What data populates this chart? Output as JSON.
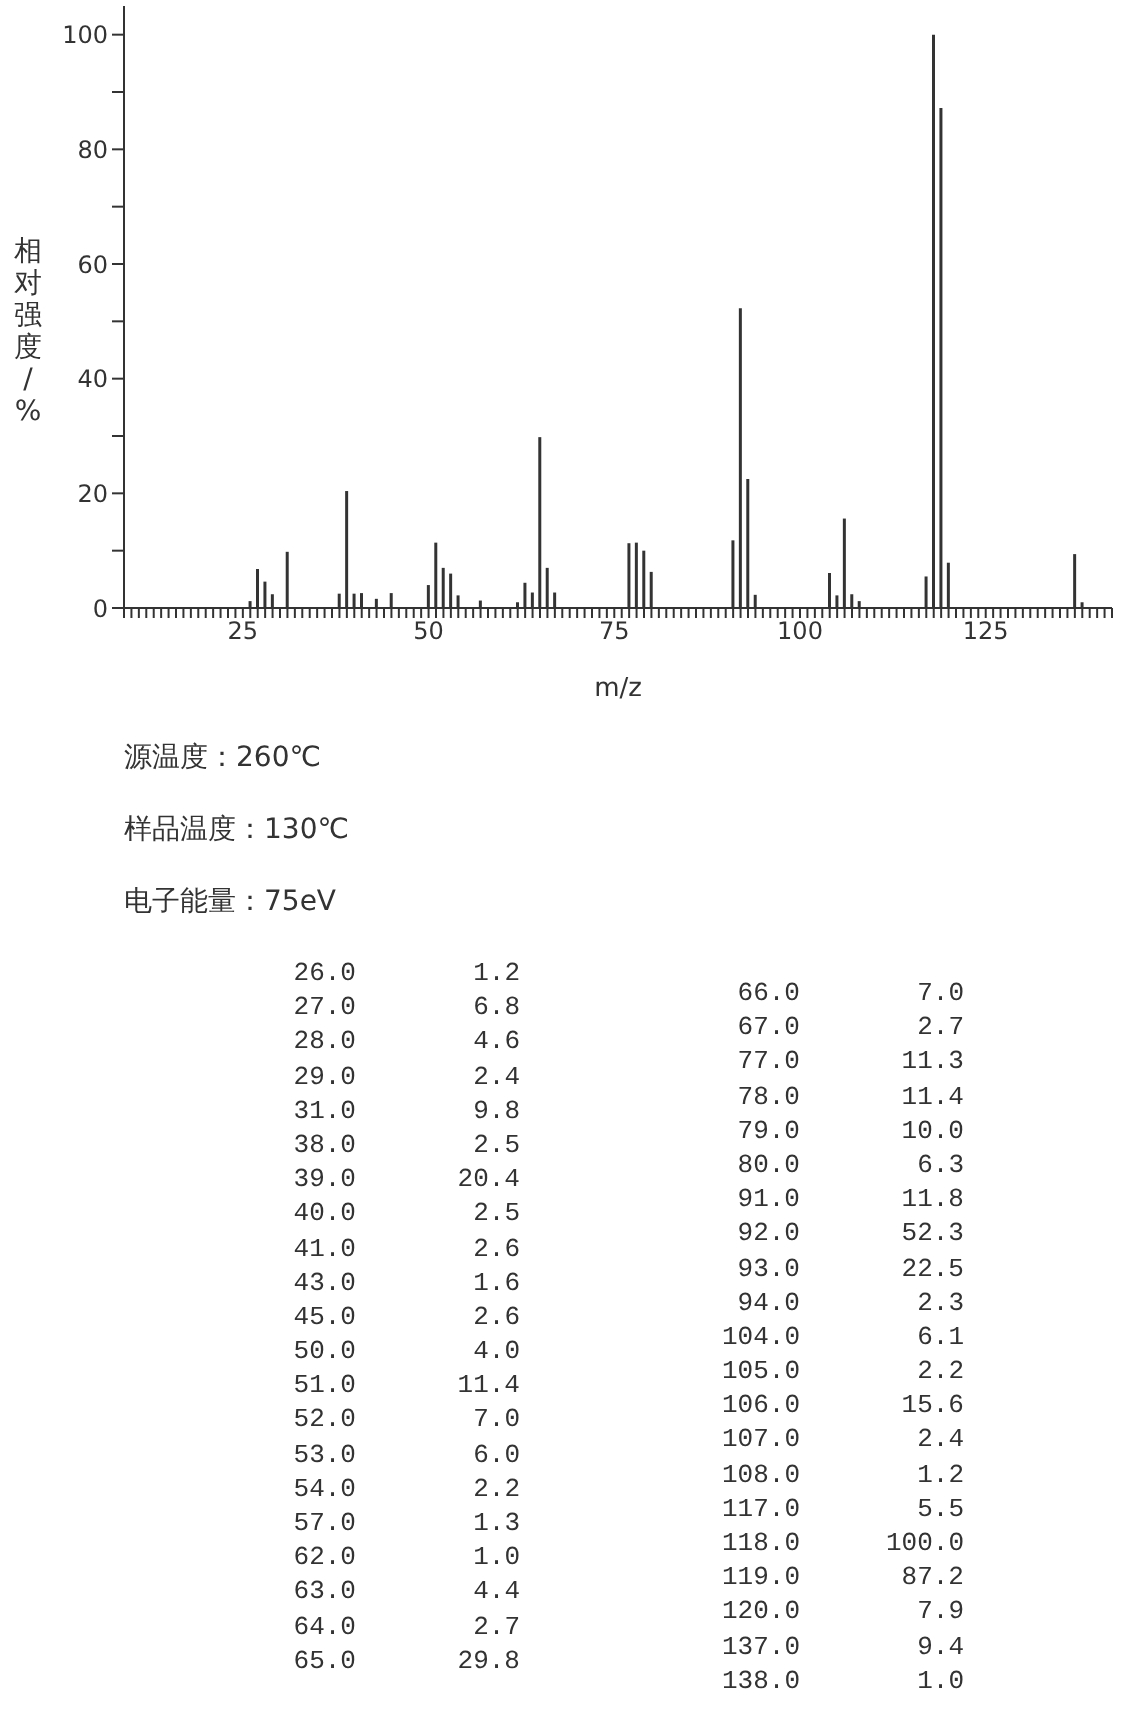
{
  "chart_data": {
    "type": "bar",
    "ylabel": "相对强度/%",
    "xlabel": "m/z",
    "color": "#333333",
    "x": [
      26,
      27,
      28,
      29,
      31,
      38,
      39,
      40,
      41,
      43,
      45,
      50,
      51,
      52,
      53,
      54,
      57,
      62,
      63,
      64,
      65,
      66,
      67,
      77,
      78,
      79,
      80,
      91,
      92,
      93,
      94,
      104,
      105,
      106,
      107,
      108,
      117,
      118,
      119,
      120,
      137,
      138
    ],
    "values": [
      1.2,
      6.8,
      4.6,
      2.4,
      9.8,
      2.5,
      20.4,
      2.5,
      2.6,
      1.6,
      2.6,
      4.0,
      11.4,
      7.0,
      6.0,
      2.2,
      1.3,
      1.0,
      4.4,
      2.7,
      29.8,
      7.0,
      2.7,
      11.3,
      11.4,
      10.0,
      6.3,
      11.8,
      52.3,
      22.5,
      2.3,
      6.1,
      2.2,
      15.6,
      2.4,
      1.2,
      5.5,
      100.0,
      87.2,
      7.9,
      9.4,
      1.0
    ],
    "xlim": [
      9,
      142
    ],
    "xticks": [
      25,
      50,
      75,
      100,
      125
    ],
    "yticks": [
      0,
      {
        "value": 10,
        "label": null
      },
      20,
      {
        "value": 30,
        "label": null
      },
      40,
      {
        "value": 50,
        "label": null
      },
      60,
      {
        "value": 70,
        "label": null
      },
      80,
      {
        "value": 90,
        "label": null
      },
      100
    ],
    "ylim": [
      0,
      105
    ],
    "annotations": [
      "源温度：260℃",
      "样品温度：130℃",
      "电子能量：75eV",
      "26.0",
      "1.2",
      "27.0",
      "6.8",
      "28.0",
      "4.6",
      "29.0",
      "2.4",
      "31.0",
      "9.8",
      "38.0",
      "2.5",
      "39.0",
      "20.4",
      "40.0",
      "2.5",
      "41.0",
      "2.6",
      "43.0",
      "1.6",
      "45.0",
      "2.6",
      "50.0",
      "4.0",
      "51.0",
      "11.4",
      "52.0",
      "7.0",
      "53.0",
      "6.0",
      "54.0",
      "2.2",
      "57.0",
      "1.3",
      "62.0",
      "1.0",
      "63.0",
      "4.4",
      "64.0",
      "2.7",
      "65.0",
      "29.8",
      "66.0",
      "7.0",
      "67.0",
      "2.7",
      "77.0",
      "11.3",
      "78.0",
      "11.4",
      "79.0",
      "10.0",
      "80.0",
      "6.3",
      "91.0",
      "11.8",
      "92.0",
      "52.3",
      "93.0",
      "22.5",
      "94.0",
      "2.3",
      "104.0",
      "6.1",
      "105.0",
      "2.2",
      "106.0",
      "15.6",
      "107.0",
      "2.4",
      "108.0",
      "1.2",
      "117.0",
      "5.5",
      "118.0",
      "100.0",
      "119.0",
      "87.2",
      "120.0",
      "7.9",
      "137.0",
      "9.4",
      "138.0",
      "1.0"
    ]
  }
}
